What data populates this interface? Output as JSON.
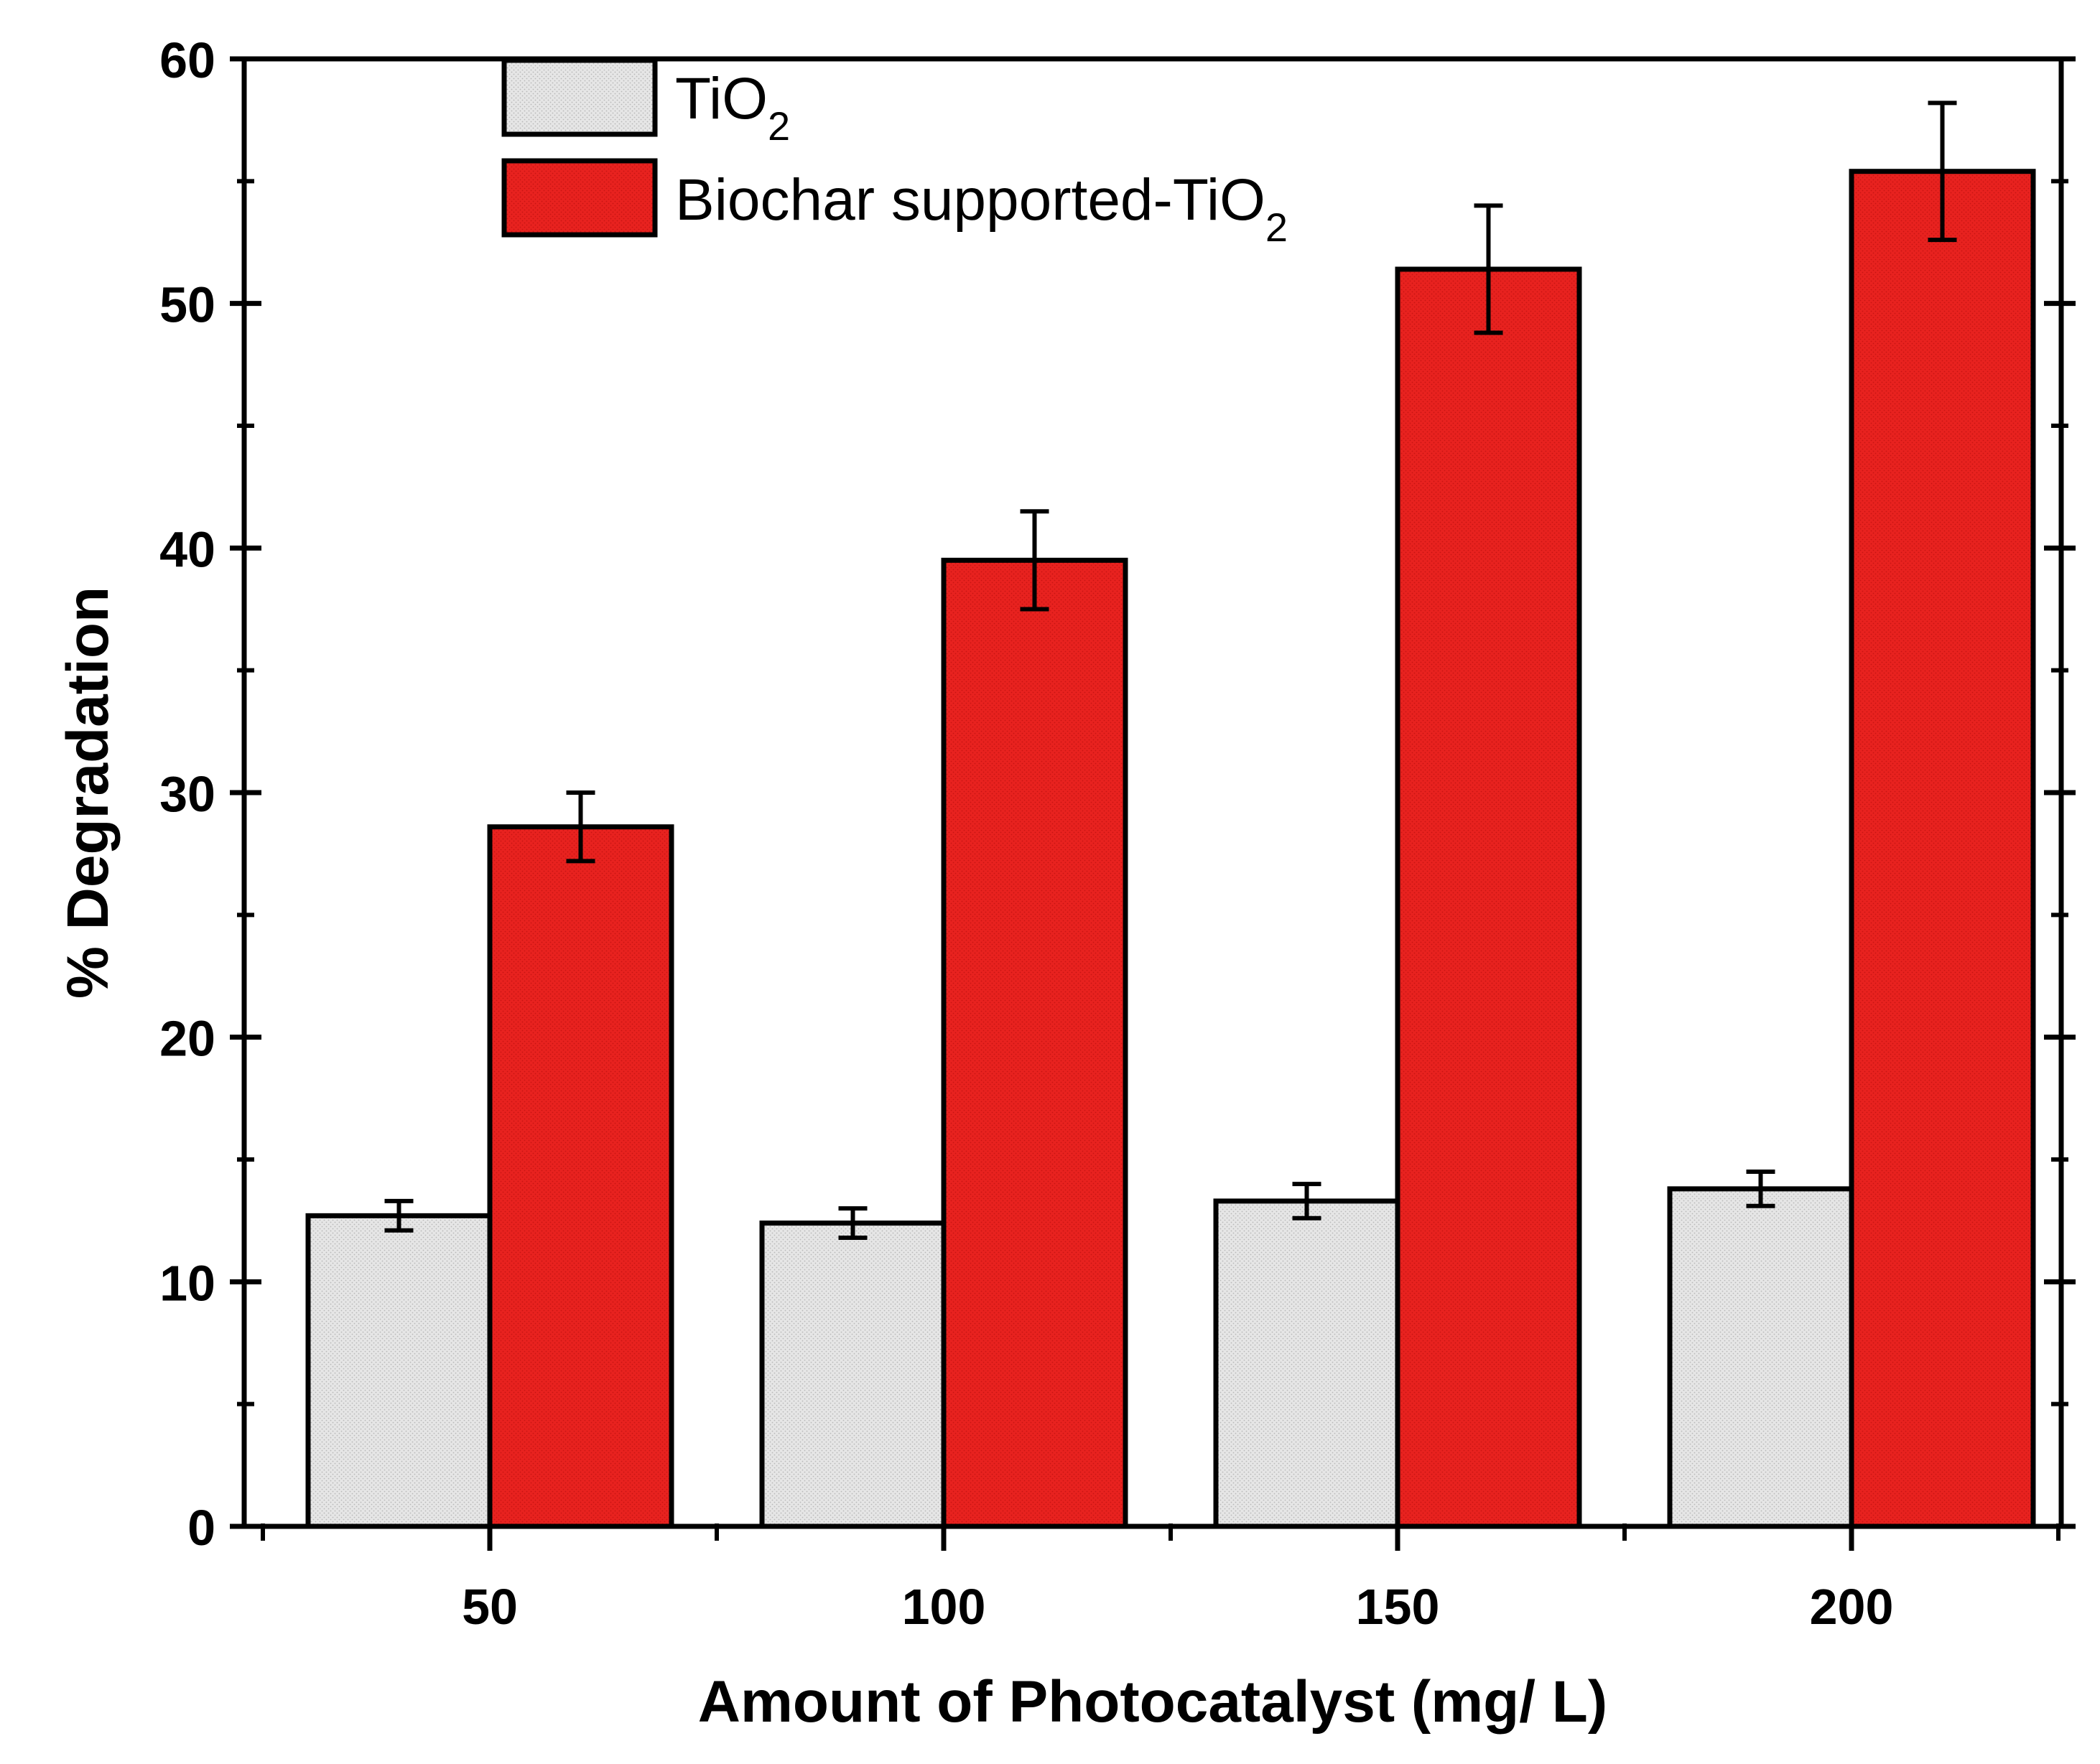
{
  "chart_data": {
    "type": "bar",
    "xlabel": "Amount of Photocatalyst (mg/ L)",
    "ylabel": "% Degradation",
    "categories": [
      "50",
      "100",
      "150",
      "200"
    ],
    "ylim": [
      0,
      60
    ],
    "yticks": [
      "0",
      "10",
      "20",
      "30",
      "40",
      "50",
      "60"
    ],
    "legend_position": "top-left",
    "series": [
      {
        "name": "TiO",
        "subscript": "2",
        "color": "#e4e4e4",
        "values": [
          12.7,
          12.4,
          13.3,
          13.8
        ],
        "errors": [
          0.6,
          0.6,
          0.7,
          0.7
        ]
      },
      {
        "name": "Biochar supported-TiO",
        "subscript": "2",
        "color": "#e8211f",
        "values": [
          28.6,
          39.5,
          51.4,
          55.4
        ],
        "errors": [
          1.4,
          2.0,
          2.6,
          2.8
        ]
      }
    ]
  }
}
